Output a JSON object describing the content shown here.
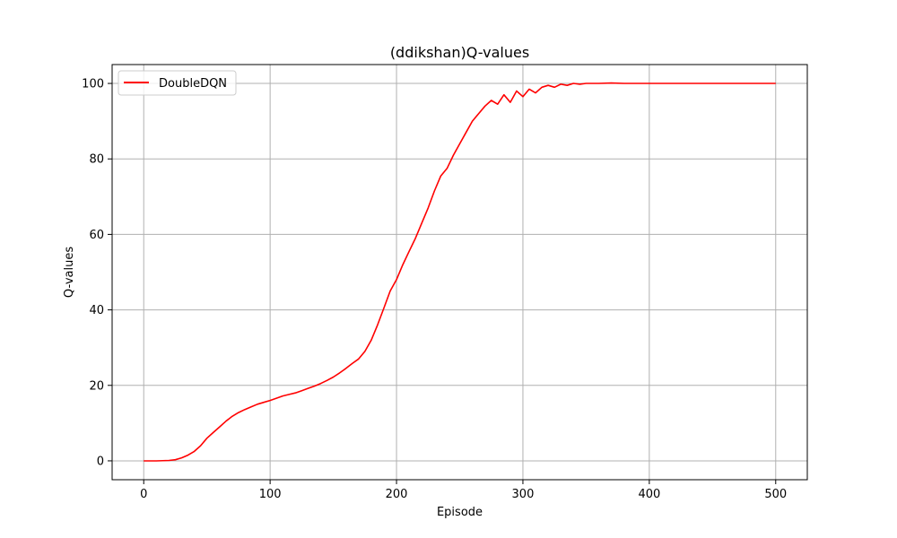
{
  "chart_data": {
    "type": "line",
    "title": "(ddikshan)Q-values",
    "xlabel": "Episode",
    "ylabel": "Q-values",
    "xlim": [
      -25,
      525
    ],
    "ylim": [
      -5,
      105
    ],
    "xticks": [
      0,
      100,
      200,
      300,
      400,
      500
    ],
    "yticks": [
      0,
      20,
      40,
      60,
      80,
      100
    ],
    "grid": true,
    "legend_position": "top-left",
    "series": [
      {
        "name": "DoubleDQN",
        "color": "#ff0000",
        "x": [
          0,
          10,
          20,
          25,
          30,
          35,
          40,
          45,
          50,
          55,
          60,
          65,
          70,
          75,
          80,
          85,
          90,
          95,
          100,
          105,
          110,
          115,
          120,
          125,
          130,
          135,
          140,
          145,
          150,
          155,
          160,
          165,
          170,
          175,
          180,
          185,
          190,
          195,
          200,
          205,
          210,
          215,
          220,
          225,
          230,
          235,
          240,
          245,
          250,
          255,
          260,
          265,
          270,
          275,
          280,
          285,
          290,
          295,
          300,
          305,
          310,
          315,
          320,
          325,
          330,
          335,
          340,
          345,
          350,
          360,
          370,
          380,
          390,
          400,
          420,
          440,
          460,
          480,
          500
        ],
        "values": [
          0,
          0,
          0.1,
          0.3,
          0.8,
          1.5,
          2.5,
          4.0,
          6.0,
          7.5,
          9.0,
          10.5,
          11.8,
          12.8,
          13.6,
          14.3,
          15.0,
          15.5,
          16.0,
          16.6,
          17.2,
          17.6,
          18.0,
          18.6,
          19.2,
          19.8,
          20.5,
          21.3,
          22.2,
          23.3,
          24.5,
          25.8,
          27.0,
          29.0,
          32.0,
          36.0,
          40.5,
          45.0,
          48.0,
          52.0,
          55.5,
          59.0,
          63.0,
          67.0,
          71.5,
          75.5,
          77.5,
          81.0,
          84.0,
          87.0,
          90.0,
          92.0,
          94.0,
          95.5,
          94.5,
          97.0,
          95.0,
          98.0,
          96.5,
          98.5,
          97.5,
          99.0,
          99.5,
          99.0,
          99.8,
          99.5,
          100.0,
          99.8,
          100.0,
          100.0,
          100.1,
          100.0,
          100.0,
          100.0,
          100.0,
          100.0,
          100.0,
          100.0,
          100.0
        ]
      }
    ]
  }
}
